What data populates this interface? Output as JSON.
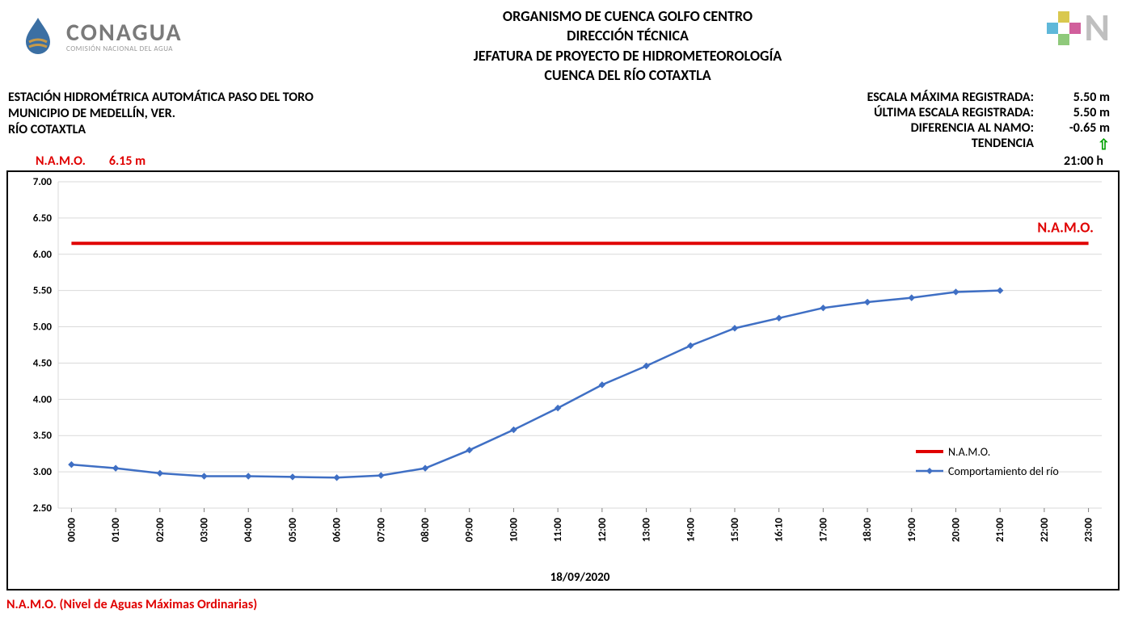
{
  "header": {
    "org_lines": [
      "ORGANISMO DE CUENCA GOLFO CENTRO",
      "DIRECCIÓN TÉCNICA",
      "JEFATURA DE PROYECTO DE HIDROMETEOROLOGÍA",
      "CUENCA DEL RÍO COTAXTLA"
    ],
    "logo_left": {
      "name": "CONAGUA",
      "subtitle": "COMISIÓN NACIONAL DEL AGUA"
    },
    "logo_right": {
      "plus_colors": {
        "top": "#d9c84f",
        "left": "#5fb8d9",
        "right": "#d15f9c",
        "bottom": "#8fc97b"
      }
    }
  },
  "info_left": {
    "l1": "ESTACIÓN HIDROMÉTRICA AUTOMÁTICA PASO DEL TORO",
    "l2": "MUNICIPIO DE MEDELLÍN, VER.",
    "l3": "RÍO COTAXTLA"
  },
  "info_right": {
    "max_label": "ESCALA MÁXIMA REGISTRADA:",
    "max_value": "5.50 m",
    "last_label": "ÚLTIMA ESCALA REGISTRADA:",
    "last_value": "5.50 m",
    "diff_label": "DIFERENCIA AL NAMO:",
    "diff_value": "-0.65 m",
    "trend_label": "TENDENCIA",
    "time_value": "21:00 h"
  },
  "namo_inline": {
    "label": "N.A.M.O.",
    "value": "6.15 m"
  },
  "chart": {
    "type": "line",
    "background_color": "#ffffff",
    "grid_color": "#d9d9d9",
    "yaxis": {
      "min": 2.5,
      "max": 7.0,
      "step": 0.5,
      "tick_fontsize": 13,
      "tick_fontweight": 700,
      "label_format": "0.00"
    },
    "xaxis": {
      "categories": [
        "00:00",
        "01:00",
        "02:00",
        "03:00",
        "04:00",
        "05:00",
        "06:00",
        "07:00",
        "08:00",
        "09:00",
        "10:00",
        "11:00",
        "12:00",
        "13:00",
        "14:00",
        "15:00",
        "16:10",
        "17:00",
        "18:00",
        "19:00",
        "20:00",
        "21:00",
        "22:00",
        "23:00"
      ],
      "tick_rotation": -90,
      "tick_fontsize": 13,
      "tick_fontweight": 700,
      "title": "18/09/2020",
      "title_fontsize": 15,
      "title_fontweight": 700
    },
    "series": [
      {
        "name": "N.A.M.O.",
        "type": "line",
        "color": "#e00000",
        "line_width": 4,
        "marker": "none",
        "data": [
          6.15,
          6.15,
          6.15,
          6.15,
          6.15,
          6.15,
          6.15,
          6.15,
          6.15,
          6.15,
          6.15,
          6.15,
          6.15,
          6.15,
          6.15,
          6.15,
          6.15,
          6.15,
          6.15,
          6.15,
          6.15,
          6.15,
          6.15,
          6.15
        ],
        "annotation": {
          "text": "N.A.M.O.",
          "color": "#e00000",
          "fontsize": 18,
          "fontweight": 700
        }
      },
      {
        "name": "Comportamiento del río",
        "type": "line",
        "color": "#3f6fc4",
        "line_width": 2.5,
        "marker": "diamond",
        "marker_size": 7,
        "data": [
          3.1,
          3.05,
          2.98,
          2.94,
          2.94,
          2.93,
          2.92,
          2.95,
          3.05,
          3.3,
          3.58,
          3.88,
          4.2,
          4.46,
          4.74,
          4.98,
          5.12,
          5.26,
          5.34,
          5.4,
          5.48,
          5.5,
          null,
          null
        ]
      }
    ],
    "legend": {
      "position": "right-inside",
      "fontsize": 14,
      "items": [
        "N.A.M.O.",
        "Comportamiento del río"
      ]
    }
  },
  "footer": "N.A.M.O. (Nivel de Aguas Máximas Ordinarias)"
}
